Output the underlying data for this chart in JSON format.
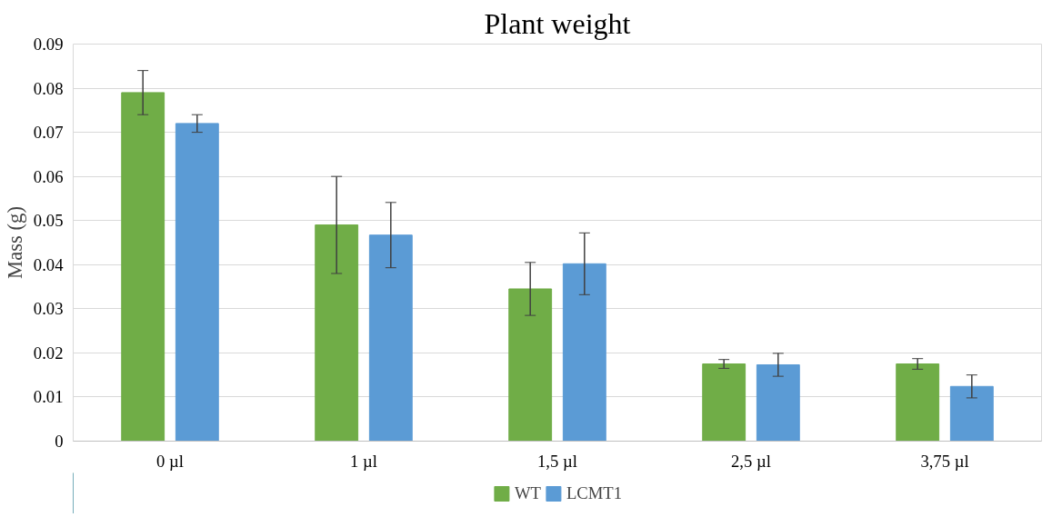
{
  "chart_data": {
    "type": "bar",
    "title": "Plant weight",
    "ylabel": "Mass (g)",
    "categories": [
      "0 µl",
      "1 µl",
      "1,5 µl",
      "2,5 µl",
      "3,75 µl"
    ],
    "series": [
      {
        "name": "WT",
        "color": "#70ad47",
        "values": [
          0.079,
          0.049,
          0.0345,
          0.0175,
          0.0175
        ],
        "errors": [
          0.005,
          0.011,
          0.006,
          0.001,
          0.0012
        ]
      },
      {
        "name": "LCMT1",
        "color": "#5b9bd5",
        "values": [
          0.072,
          0.0467,
          0.0402,
          0.0173,
          0.0124
        ],
        "errors": [
          0.002,
          0.0074,
          0.007,
          0.0026,
          0.0026
        ]
      }
    ],
    "ylim": [
      0,
      0.09
    ],
    "yticks": [
      0,
      0.01,
      0.02,
      0.03,
      0.04,
      0.05,
      0.06,
      0.07,
      0.08,
      0.09
    ],
    "grid": "y",
    "legend": "bottom"
  }
}
